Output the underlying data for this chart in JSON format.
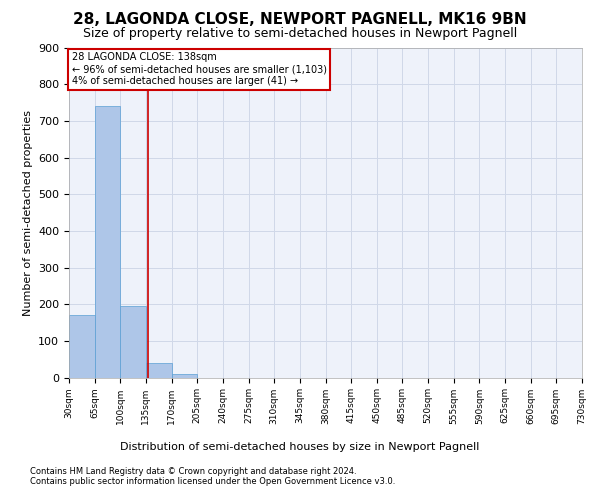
{
  "title": "28, LAGONDA CLOSE, NEWPORT PAGNELL, MK16 9BN",
  "subtitle": "Size of property relative to semi-detached houses in Newport Pagnell",
  "xlabel": "Distribution of semi-detached houses by size in Newport Pagnell",
  "ylabel": "Number of semi-detached properties",
  "footnote1": "Contains HM Land Registry data © Crown copyright and database right 2024.",
  "footnote2": "Contains public sector information licensed under the Open Government Licence v3.0.",
  "annotation_line1": "28 LAGONDA CLOSE: 138sqm",
  "annotation_line2": "← 96% of semi-detached houses are smaller (1,103)",
  "annotation_line3": "4% of semi-detached houses are larger (41) →",
  "property_sqm": 138,
  "bar_left_edges": [
    30,
    65,
    100,
    135,
    170,
    205,
    240,
    275,
    310,
    345,
    380,
    415,
    450,
    485,
    520,
    555,
    590,
    625,
    660,
    695
  ],
  "bar_widths": [
    35,
    35,
    35,
    35,
    35,
    35,
    35,
    35,
    35,
    35,
    35,
    35,
    35,
    35,
    35,
    35,
    35,
    35,
    35,
    35
  ],
  "bar_heights": [
    170,
    740,
    195,
    40,
    10,
    0,
    0,
    0,
    0,
    0,
    0,
    0,
    0,
    0,
    0,
    0,
    0,
    0,
    0,
    0
  ],
  "bar_color": "#aec6e8",
  "bar_edge_color": "#5a9fd4",
  "grid_color": "#d0d8e8",
  "bg_color": "#eef2fa",
  "red_line_color": "#cc0000",
  "annotation_box_color": "#cc0000",
  "x_tick_labels": [
    "30sqm",
    "65sqm",
    "100sqm",
    "135sqm",
    "170sqm",
    "205sqm",
    "240sqm",
    "275sqm",
    "310sqm",
    "345sqm",
    "380sqm",
    "415sqm",
    "450sqm",
    "485sqm",
    "520sqm",
    "555sqm",
    "590sqm",
    "625sqm",
    "660sqm",
    "695sqm",
    "730sqm"
  ],
  "ylim": [
    0,
    900
  ],
  "xlim": [
    30,
    730
  ],
  "title_fontsize": 11,
  "subtitle_fontsize": 9,
  "ylabel_fontsize": 8,
  "xtick_fontsize": 6.5,
  "ytick_fontsize": 8,
  "annotation_fontsize": 7,
  "xlabel_fontsize": 8,
  "footnote_fontsize": 6
}
